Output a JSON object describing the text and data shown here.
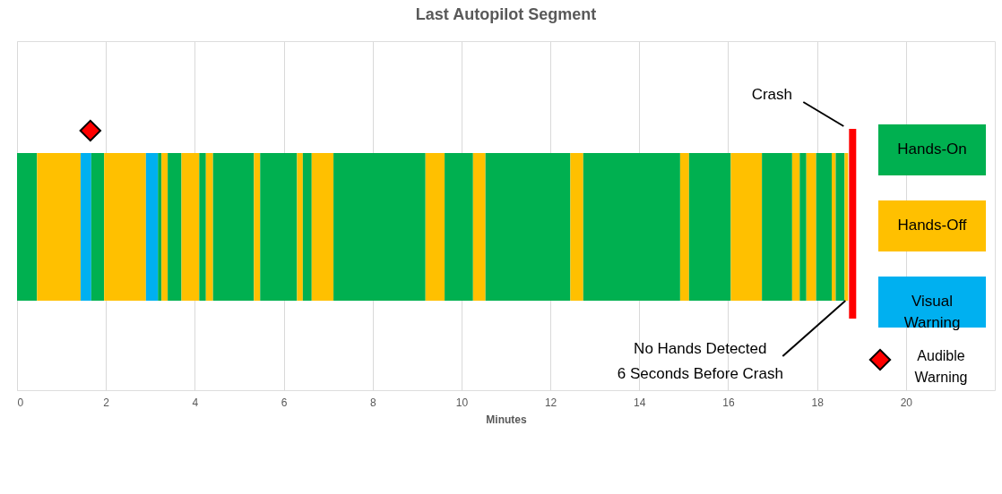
{
  "chart_data": {
    "type": "bar",
    "orientation": "horizontal",
    "stacked": true,
    "title": "Last Autopilot Segment",
    "xlabel": "Minutes",
    "categories": [
      null
    ],
    "xlim": [
      0,
      22
    ],
    "xticks": [
      0,
      2,
      4,
      6,
      8,
      10,
      12,
      14,
      16,
      18,
      20
    ],
    "grid": "x",
    "tick_labels": "x",
    "legend": "right",
    "series": [
      {
        "name": "Hands-On",
        "color": "#00b050",
        "values": [
          0.45
        ]
      },
      {
        "name": "Hands-Off",
        "color": "#ffc000",
        "values": [
          0.98
        ]
      },
      {
        "name": "Visual Warning",
        "color": "#00b0f0",
        "values": [
          0.24
        ]
      },
      {
        "color": "#00b050",
        "values": [
          0.29
        ]
      },
      {
        "color": "#ffc000",
        "values": [
          0.94
        ]
      },
      {
        "color": "#00b0f0",
        "values": [
          0.27
        ]
      },
      {
        "color": "#00b050",
        "values": [
          0.08
        ]
      },
      {
        "color": "#ffc000",
        "values": [
          0.14
        ]
      },
      {
        "color": "#00b050",
        "values": [
          0.31
        ]
      },
      {
        "color": "#ffc000",
        "values": [
          0.4
        ]
      },
      {
        "color": "#00b050",
        "values": [
          0.15
        ]
      },
      {
        "color": "#ffc000",
        "values": [
          0.16
        ]
      },
      {
        "color": "#00b050",
        "values": [
          0.92
        ]
      },
      {
        "color": "#ffc000",
        "values": [
          0.14
        ]
      },
      {
        "color": "#00b050",
        "values": [
          0.83
        ]
      },
      {
        "color": "#ffc000",
        "values": [
          0.13
        ]
      },
      {
        "color": "#00b050",
        "values": [
          0.2
        ]
      },
      {
        "color": "#ffc000",
        "values": [
          0.49
        ]
      },
      {
        "color": "#00b050",
        "values": [
          2.07
        ]
      },
      {
        "color": "#ffc000",
        "values": [
          0.43
        ]
      },
      {
        "color": "#00b050",
        "values": [
          0.64
        ]
      },
      {
        "color": "#ffc000",
        "values": [
          0.28
        ]
      },
      {
        "color": "#00b050",
        "values": [
          1.91
        ]
      },
      {
        "color": "#ffc000",
        "values": [
          0.29
        ]
      },
      {
        "color": "#00b050",
        "values": [
          2.18
        ]
      },
      {
        "color": "#ffc000",
        "values": [
          0.2
        ]
      },
      {
        "color": "#00b050",
        "values": [
          0.94
        ]
      },
      {
        "color": "#ffc000",
        "values": [
          0.7
        ]
      },
      {
        "color": "#00b050",
        "values": [
          0.68
        ]
      },
      {
        "color": "#ffc000",
        "values": [
          0.17
        ]
      },
      {
        "color": "#00b050",
        "values": [
          0.15
        ]
      },
      {
        "color": "#ffc000",
        "values": [
          0.22
        ]
      },
      {
        "color": "#00b050",
        "values": [
          0.35
        ]
      },
      {
        "color": "#ffc000",
        "values": [
          0.09
        ]
      },
      {
        "color": "#00b050",
        "values": [
          0.2
        ]
      },
      {
        "color": "#ffc000",
        "values": [
          0.08
        ]
      },
      {
        "name": "Audible Warning",
        "type": "scatter",
        "marker": "diamond",
        "color": "#ff0000",
        "values": [
          1.65
        ]
      }
    ],
    "ref_lines": [
      {
        "axis": "x",
        "value": 18.8,
        "label": "Crash",
        "color": "#ff0000"
      }
    ],
    "annotations": [
      "No Hands Detected\n6 Seconds Before Crash"
    ]
  }
}
